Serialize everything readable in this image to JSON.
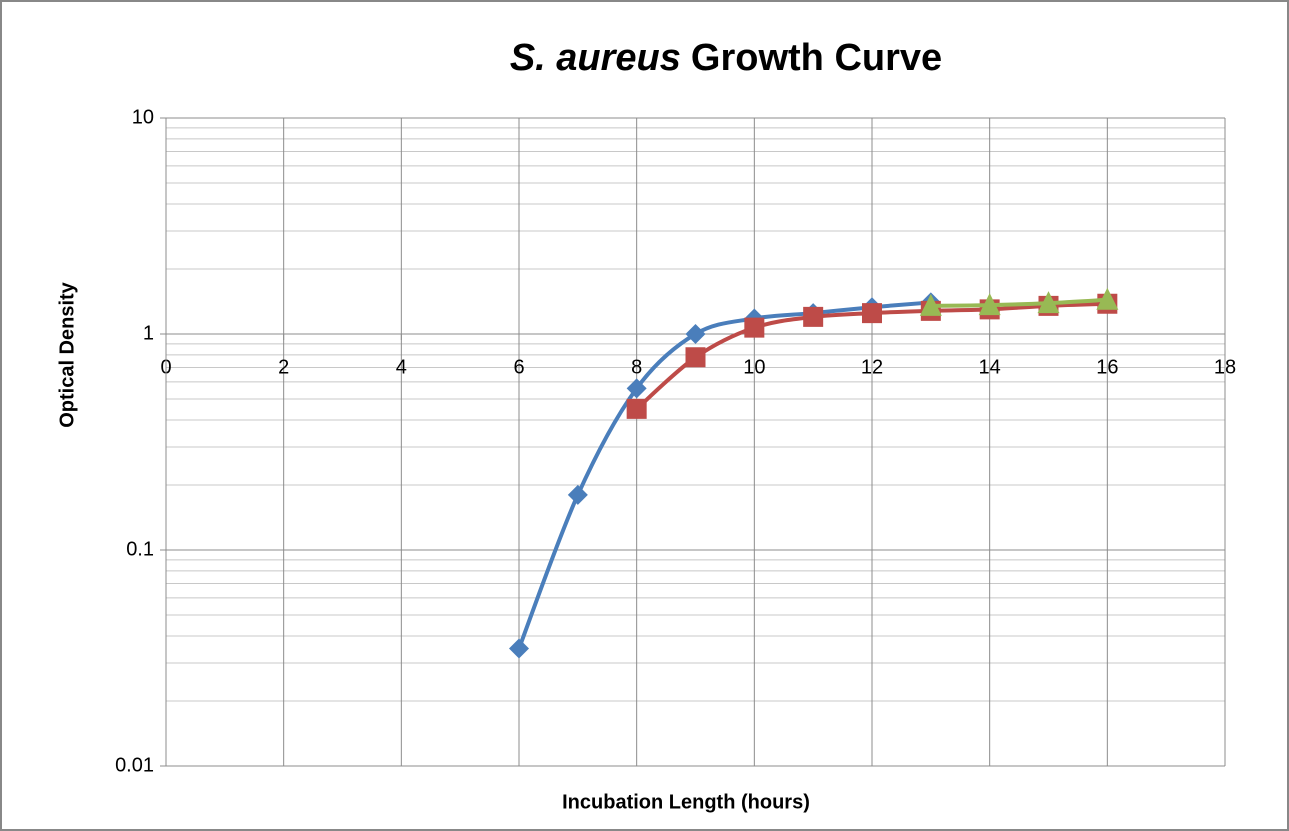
{
  "chart_data": {
    "type": "line",
    "title_italic": "S. aureus",
    "title": "Growth Curve",
    "x_label": "Incubation Length (hours)",
    "y_label": "Optical Density",
    "log_y": true,
    "grid": true,
    "minor_grid": true,
    "smooth": true,
    "x_axis_at": 1,
    "xlim": [
      0,
      18
    ],
    "xticks": [
      0,
      2,
      4,
      6,
      8,
      10,
      12,
      14,
      16,
      18
    ],
    "ylim": [
      0.01,
      10
    ],
    "yticks": [
      0.01,
      0.1,
      1,
      10
    ],
    "series": [
      {
        "color": "#4a7ebb",
        "marker": "diamond",
        "x": [
          6,
          7,
          8,
          9,
          10,
          11,
          12,
          13
        ],
        "values": [
          0.035,
          0.18,
          0.56,
          1.0,
          1.18,
          1.25,
          1.33,
          1.4
        ]
      },
      {
        "color": "#be4b48",
        "marker": "square",
        "x": [
          8,
          9,
          10,
          11,
          12,
          13,
          14,
          15,
          16
        ],
        "values": [
          0.45,
          0.78,
          1.07,
          1.2,
          1.25,
          1.28,
          1.3,
          1.35,
          1.38
        ]
      },
      {
        "color": "#98b954",
        "marker": "triangle",
        "x": [
          13,
          14,
          15,
          16
        ],
        "values": [
          1.35,
          1.36,
          1.39,
          1.44
        ]
      }
    ]
  }
}
